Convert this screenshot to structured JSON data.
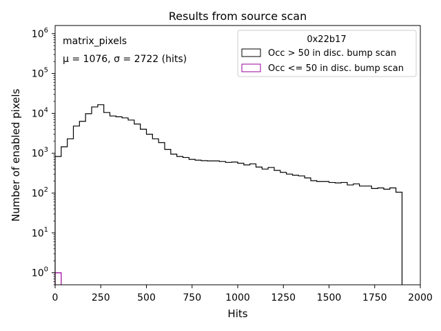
{
  "chart_data": {
    "type": "histogram",
    "title": "Results from source scan",
    "xlabel": "Hits",
    "ylabel": "Number of enabled pixels",
    "xlim": [
      0,
      2000
    ],
    "ylim": [
      0.5,
      1600000
    ],
    "yscale": "log",
    "grid": false,
    "x_ticks": [
      0,
      250,
      500,
      750,
      1000,
      1250,
      1500,
      1750,
      2000
    ],
    "y_ticks": [
      {
        "value": 1,
        "base": "10",
        "exp": "0"
      },
      {
        "value": 10,
        "base": "10",
        "exp": "1"
      },
      {
        "value": 100,
        "base": "10",
        "exp": "2"
      },
      {
        "value": 1000,
        "base": "10",
        "exp": "3"
      },
      {
        "value": 10000,
        "base": "10",
        "exp": "4"
      },
      {
        "value": 100000,
        "base": "10",
        "exp": "5"
      },
      {
        "value": 1000000,
        "base": "10",
        "exp": "6"
      }
    ],
    "annotations": {
      "line1": "matrix_pixels",
      "line2": "μ = 1076, σ = 2722 (hits)"
    },
    "legend": {
      "title": "0x22b17",
      "placement": "top-right",
      "entries": [
        {
          "label": "Occ > 50 in disc. bump scan",
          "color": "#000000"
        },
        {
          "label": "Occ <= 50 in disc. bump scan",
          "color": "#990099"
        }
      ]
    },
    "bin_width": 33.33,
    "series": [
      {
        "name": "Occ > 50 in disc. bump scan",
        "color": "#000000",
        "values": [
          830,
          1450,
          2300,
          4800,
          6300,
          9800,
          14500,
          16500,
          10500,
          8600,
          8200,
          7700,
          6800,
          5400,
          4000,
          3000,
          2300,
          1850,
          1250,
          950,
          830,
          780,
          700,
          670,
          650,
          640,
          640,
          620,
          590,
          600,
          560,
          510,
          540,
          450,
          400,
          440,
          370,
          330,
          300,
          280,
          270,
          240,
          205,
          195,
          195,
          185,
          180,
          185,
          160,
          170,
          150,
          150,
          130,
          135,
          125,
          135,
          105
        ]
      },
      {
        "name": "Occ <= 50 in disc. bump scan",
        "color": "#990099",
        "values": [
          1
        ]
      }
    ]
  }
}
